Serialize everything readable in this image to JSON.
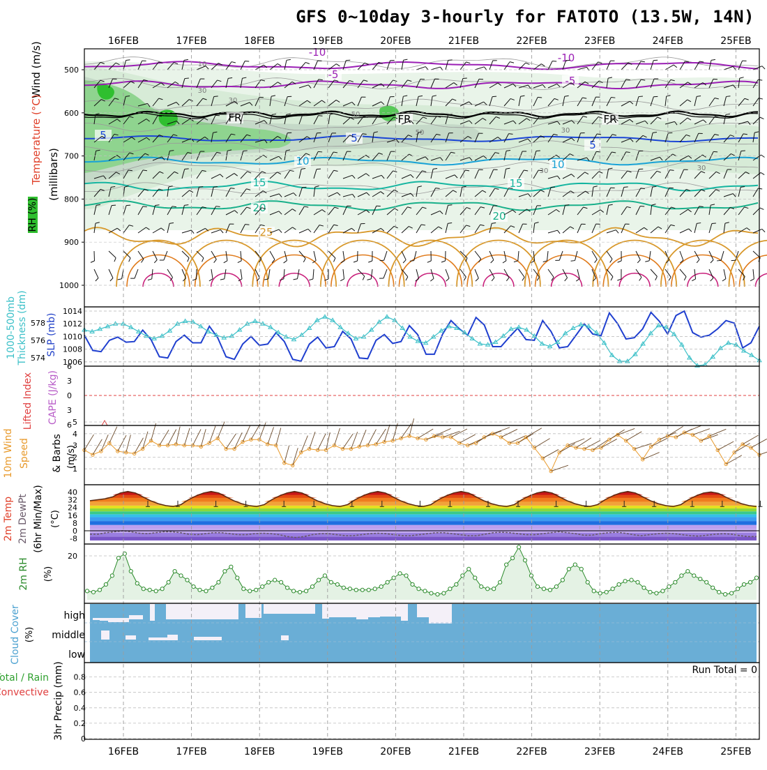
{
  "meteogram": {
    "title": "GFS 0~10day 3-hourly for FATOTO (13.5W, 14N)",
    "date_ticks": [
      "16FEB",
      "17FEB",
      "18FEB",
      "19FEB",
      "20FEB",
      "21FEB",
      "22FEB",
      "23FEB",
      "24FEB",
      "25FEB"
    ],
    "run_total_label": "Run Total = 0",
    "colors": {
      "rh_green": "#2fbf2f",
      "temp_purple": "#9b1fb5",
      "temp_blue": "#1b46d6",
      "temp_cyan": "#19a2d6",
      "temp_teal": "#15b5a0",
      "temp_orange": "#d8982a",
      "slp_blue": "#1f3fcf",
      "thickness_cyan": "#3cc0c8",
      "wind_orange": "#e89a2c",
      "rh2m_green": "#2a8a2a",
      "cloud_blue": "#6aaed6"
    }
  },
  "panel_labels": {
    "upper_wind": "Wind (m/s)",
    "upper_temp": "Temperature (°C)",
    "upper_mb": "(millibars)",
    "upper_rh": "RH (%)",
    "thick": "1000-500mb",
    "thick2": "Thickness (dm)",
    "slp": "SLP (mb)",
    "li": "Lifted Index",
    "cape": "CAPE (J/kg)",
    "wind10": "10m Wind",
    "wind10b": "Speed",
    "wind10c": "& Barbs",
    "wind10u": "(m/s)",
    "t2m": "2m Temp",
    "t2m_b": "2m DewPt",
    "t2m_c": "(6hr Min/Max)",
    "t2m_u": "(°C)",
    "rh2m": "2m RH",
    "rh2m_u": "(%)",
    "cloud": "Cloud Cover",
    "cloud_u": "(%)",
    "precip_a": "Total / Rain",
    "precip_b": "Convective",
    "precip_c": "3hr Precip (mm)"
  },
  "chart_data": [
    {
      "type": "contour",
      "name_shown": "",
      "y_axis": {
        "label": "(millibars)",
        "ticks": [
          500,
          600,
          700,
          800,
          900,
          1000
        ]
      },
      "isotherm_labels": [
        {
          "value": "-10",
          "at": "15FEB-16FEB"
        },
        {
          "value": "-10",
          "at": "22FEB"
        },
        {
          "value": "-5",
          "at": "18FEB"
        },
        {
          "value": "-5",
          "at": "22FEB"
        },
        {
          "value": "FR",
          "at": "17FEB"
        },
        {
          "value": "FR",
          "at": "20FEB"
        },
        {
          "value": "FR",
          "at": "23FEB"
        },
        {
          "value": "5",
          "at": "15FEB"
        },
        {
          "value": "5",
          "at": "19FEB"
        },
        {
          "value": "5",
          "at": "22FEB"
        },
        {
          "value": "10",
          "at": "18FEB"
        },
        {
          "value": "10",
          "at": "22FEB"
        },
        {
          "value": "15",
          "at": "17FEB"
        },
        {
          "value": "15",
          "at": "21FEB"
        },
        {
          "value": "20",
          "at": "17FEB"
        },
        {
          "value": "20",
          "at": "21FEB"
        },
        {
          "value": "25",
          "at": "18FEB"
        }
      ],
      "rh_labels": [
        "10",
        "30",
        "30",
        "50",
        "50",
        "30",
        "30",
        "30"
      ]
    },
    {
      "type": "line",
      "y_left": {
        "label": "Thickness (dm)",
        "ticks": [
          574,
          576,
          578
        ]
      },
      "y_right": {
        "label": "SLP (mb)",
        "ticks": [
          1006,
          1008,
          1010,
          1012,
          1014
        ]
      },
      "series": [
        {
          "name": "SLP",
          "axis": "right",
          "values": [
            1010.2,
            1007.8,
            1007.6,
            1009.4,
            1009.9,
            1009.1,
            1009.2,
            1011,
            1009.5,
            1006.8,
            1006.6,
            1009.2,
            1010.2,
            1009,
            1009,
            1011.6,
            1009.8,
            1006.8,
            1006.4,
            1008.8,
            1010,
            1008.6,
            1008.8,
            1010.6,
            1009.2,
            1006.4,
            1006.1,
            1008.8,
            1009.9,
            1008.2,
            1008.4,
            1010.8,
            1009.6,
            1006.6,
            1006.5,
            1009.4,
            1010.3,
            1008.9,
            1009.2,
            1011.7,
            1010.3,
            1007.2,
            1007.2,
            1010.4,
            1012.5,
            1011.2,
            1010.2,
            1013,
            1011.8,
            1008.4,
            1008.4,
            1009.9,
            1011.3,
            1009.5,
            1009.4,
            1012.5,
            1010.8,
            1008.2,
            1008.4,
            1010.2,
            1012,
            1010.4,
            1010.1,
            1013.7,
            1012,
            1009.6,
            1009.8,
            1011.2,
            1013.8,
            1012.4,
            1010.4,
            1013.3,
            1014,
            1010.6,
            1009.9,
            1010.2,
            1011.2,
            1012.5,
            1012.1,
            1008.2,
            1009,
            1011.6
          ]
        },
        {
          "name": "1000-500mb",
          "axis": "left",
          "values": [
            577.2,
            577,
            577.3,
            577.6,
            577.9,
            577.9,
            577.5,
            577,
            576.5,
            576.2,
            576.5,
            577.1,
            577.9,
            578.2,
            578.1,
            577.6,
            577,
            576.6,
            576.3,
            576.5,
            577.2,
            577.9,
            578.2,
            577.9,
            577.5,
            576.9,
            576.4,
            576.1,
            576.6,
            577.4,
            578.3,
            578.7,
            578.3,
            577.5,
            576.8,
            576.2,
            576.4,
            577.2,
            578.1,
            578.7,
            578.3,
            577.4,
            576.4,
            575.9,
            575.7,
            576.4,
            577.1,
            577.6,
            577.4,
            576.9,
            576.2,
            575.6,
            575.5,
            575.8,
            576.5,
            577.3,
            577.5,
            577.2,
            576.5,
            575.6,
            575.3,
            575.8,
            576.8,
            577.4,
            577.8,
            577.6,
            576.9,
            575.7,
            574.3,
            573.6,
            573.6,
            574.4,
            575.6,
            576.8,
            577.7,
            577.5,
            576.7,
            575.5,
            574,
            573.1,
            573.2,
            574.1,
            575.1,
            575.7,
            575.5,
            574.8,
            574.3,
            573.7
          ]
        }
      ]
    },
    {
      "type": "line",
      "y_left": {
        "label": "Lifted Index",
        "ticks": [
          -6,
          -3,
          0,
          3,
          6
        ]
      },
      "y_right": {
        "label": "CAPE (J/kg)"
      },
      "series": [
        {
          "name": "Lifted Index",
          "values": [
            0
          ]
        }
      ]
    },
    {
      "type": "line",
      "y_axis": {
        "label": "(m/s)",
        "ticks": [
          1,
          2,
          3,
          4,
          5
        ]
      },
      "series": [
        {
          "name": "10m Wind Speed",
          "values": [
            2.6,
            2.2,
            2.5,
            3.2,
            2.5,
            2.4,
            2.3,
            2.7,
            3.4,
            3,
            3,
            3.1,
            3,
            3,
            2.9,
            3.2,
            3.6,
            2.7,
            2.7,
            3.3,
            3.5,
            3.5,
            3.1,
            3,
            1.5,
            1.3,
            2.4,
            2.7,
            2.6,
            2.6,
            3,
            2.7,
            2.7,
            2.9,
            3,
            3.1,
            3.3,
            3.4,
            3.6,
            3.8,
            3.6,
            3.5,
            3.8,
            3.7,
            3.7,
            3.2,
            3,
            3.2,
            3.7,
            4,
            3.7,
            3.2,
            3.2,
            3.7,
            2.8,
            1.9,
            0.8,
            2.4,
            3,
            2.8,
            2.7,
            2.6,
            2.8,
            3.5,
            3.9,
            3.4,
            2.7,
            1.8,
            2.9,
            3.5,
            3.8,
            3.7,
            4.1,
            3.9,
            3.4,
            3.8,
            2.6,
            1.4,
            2.4,
            3.1,
            2.8,
            2.2
          ]
        }
      ]
    },
    {
      "type": "area",
      "y_axis": {
        "label": "(°C)",
        "ticks": [
          -8,
          0,
          8,
          16,
          24,
          32,
          40
        ]
      },
      "series": [
        {
          "name": "2m Temp",
          "values": [
            31,
            32,
            33,
            35,
            39,
            40.5,
            39,
            35,
            31,
            28,
            26,
            25,
            27,
            32,
            36,
            39,
            40.5,
            39,
            35,
            31,
            28,
            26,
            25,
            27,
            32,
            36,
            39,
            40.5,
            39,
            35,
            31,
            28,
            26,
            25,
            27,
            32,
            36,
            39,
            40.5,
            39,
            35,
            31,
            28,
            26,
            25,
            27,
            32,
            36,
            39,
            40.5,
            39,
            35,
            31,
            28,
            26,
            25,
            27,
            32,
            36,
            39,
            40.5,
            39,
            35,
            31,
            28,
            26,
            25,
            27,
            32,
            36,
            39,
            40.5,
            39,
            35,
            31,
            28,
            26,
            25,
            27,
            32,
            36,
            39,
            40,
            38.5,
            34.5,
            31,
            28,
            26,
            25
          ]
        },
        {
          "name": "2m DewPt",
          "values": [
            -3.5,
            -3.5,
            -2,
            -1,
            0,
            -1,
            -2.5,
            -3,
            -2,
            -1,
            -1,
            -2,
            -3.5,
            -4,
            -3,
            -2,
            -2,
            -3,
            -4,
            -4,
            -3,
            -2.5,
            -3,
            -4,
            -6,
            -7,
            -6,
            -4,
            -3,
            -3,
            -4,
            -5,
            -5,
            -4,
            -3,
            -2.5,
            -3,
            -4,
            -5,
            -5,
            -4,
            -3,
            -2,
            -2,
            -3,
            -4,
            -5,
            -5,
            -3.5,
            -2,
            -1.5,
            -2,
            -3,
            -4,
            -4,
            -3,
            -2,
            -1,
            -2,
            -3,
            -4.5,
            -4.5,
            -3,
            -2,
            -1.5,
            -2.5,
            -4,
            -5,
            -4,
            -3,
            -2.5,
            -3,
            -4,
            -5,
            -5.5,
            -4.5,
            -3.5,
            -3,
            -3.5,
            -5,
            -6,
            -6
          ]
        }
      ]
    },
    {
      "type": "area",
      "y_axis": {
        "label": "(%)",
        "ticks": [
          20
        ]
      },
      "series": [
        {
          "name": "2m RH",
          "values": [
            4,
            3.5,
            4.5,
            7,
            11,
            19,
            21,
            13,
            7.5,
            5,
            4.5,
            4,
            5,
            8,
            13,
            11,
            9,
            6,
            4.5,
            4,
            5.5,
            8,
            13,
            15,
            10,
            5,
            4,
            4.5,
            6,
            8,
            9,
            8,
            5.5,
            4,
            3.5,
            4,
            6,
            9,
            11,
            8,
            7,
            5.5,
            5,
            4.5,
            4.5,
            4.5,
            5,
            6,
            8,
            10,
            12,
            11,
            7,
            5,
            4,
            3,
            2.5,
            3,
            5,
            7,
            11,
            14,
            10,
            6,
            5,
            5,
            8,
            16,
            19,
            24,
            18,
            11,
            6,
            5,
            4.5,
            6,
            9,
            14,
            16,
            14,
            8,
            4,
            3,
            3.5,
            5,
            7,
            8.5,
            9,
            8,
            5.5,
            3.5,
            3,
            4,
            6,
            8,
            11,
            13,
            11,
            9.5,
            8,
            5.5,
            3.5,
            2.5,
            3,
            5,
            7,
            8,
            10
          ]
        }
      ]
    },
    {
      "type": "bar",
      "y_axis": {
        "label": "(%)",
        "categories": [
          "high",
          "middle",
          "low"
        ]
      },
      "series": [
        {
          "name": "Cloud Cover",
          "values": []
        }
      ]
    },
    {
      "type": "bar",
      "y_axis": {
        "label": "3hr Precip (mm)",
        "ticks": [
          0,
          0.2,
          0.4,
          0.6,
          0.8
        ]
      },
      "series": [
        {
          "name": "Total / Rain",
          "values": []
        },
        {
          "name": "Convective",
          "values": []
        }
      ],
      "annotation": "Run Total = 0"
    }
  ]
}
